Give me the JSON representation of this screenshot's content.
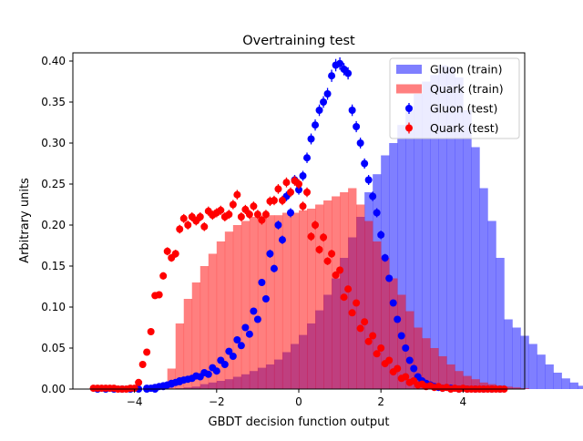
{
  "chart_data": {
    "type": "histogram",
    "title": "Overtraining test",
    "xlabel": "GBDT decision function output",
    "ylabel": "Arbitrary units",
    "xlim": [
      -5.5,
      5.5
    ],
    "ylim": [
      0,
      0.41
    ],
    "xticks": [
      -4,
      -2,
      0,
      2,
      4
    ],
    "xtick_labels": [
      "−4",
      "−2",
      "0",
      "2",
      "4"
    ],
    "yticks": [
      0,
      0.05,
      0.1,
      0.15,
      0.2,
      0.25,
      0.3,
      0.35,
      0.4
    ],
    "ytick_labels": [
      "0.00",
      "0.05",
      "0.10",
      "0.15",
      "0.20",
      "0.25",
      "0.30",
      "0.35",
      "0.40"
    ],
    "grid": false,
    "legend_position": "top-right",
    "bin_edges_start": -5.0,
    "bin_width": 0.2,
    "colors": {
      "gluon": "#0000ff",
      "quark": "#ff0000",
      "gluon_fill": "#8080ff",
      "quark_fill": "#ff8080",
      "overlap": "#c04080"
    },
    "series": [
      {
        "name": "Gluon (train)",
        "kind": "filled-histogram",
        "color": "#0000ff",
        "values": [
          0,
          0,
          0,
          0,
          0,
          0,
          0,
          0,
          0,
          0,
          0.001,
          0.002,
          0.003,
          0.006,
          0.008,
          0.01,
          0.012,
          0.015,
          0.018,
          0.022,
          0.026,
          0.03,
          0.036,
          0.045,
          0.055,
          0.066,
          0.08,
          0.096,
          0.115,
          0.135,
          0.16,
          0.185,
          0.21,
          0.24,
          0.262,
          0.285,
          0.3,
          0.322,
          0.345,
          0.36,
          0.375,
          0.383,
          0.395,
          0.393,
          0.38,
          0.34,
          0.295,
          0.245,
          0.205,
          0.16,
          0.085,
          0.075,
          0.065,
          0.055,
          0.042,
          0.03,
          0.02,
          0.013,
          0.008,
          0.004,
          0.002,
          0.001,
          0,
          0,
          0,
          0,
          0,
          0,
          0,
          0
        ]
      },
      {
        "name": "Quark (train)",
        "kind": "filled-histogram",
        "color": "#ff0000",
        "values": [
          0,
          0,
          0,
          0,
          0,
          0,
          0,
          0,
          0.005,
          0.025,
          0.08,
          0.11,
          0.13,
          0.15,
          0.165,
          0.18,
          0.192,
          0.2,
          0.205,
          0.21,
          0.21,
          0.212,
          0.212,
          0.215,
          0.215,
          0.218,
          0.22,
          0.225,
          0.23,
          0.235,
          0.24,
          0.245,
          0.225,
          0.205,
          0.18,
          0.16,
          0.135,
          0.115,
          0.095,
          0.075,
          0.062,
          0.05,
          0.04,
          0.03,
          0.022,
          0.016,
          0.012,
          0.008,
          0.006,
          0.004,
          0.003,
          0.002,
          0.001,
          0,
          0,
          0,
          0,
          0,
          0,
          0,
          0,
          0,
          0,
          0,
          0,
          0,
          0,
          0,
          0,
          0
        ]
      },
      {
        "name": "Gluon (test)",
        "kind": "points",
        "color": "#0000ff",
        "x": [
          -4.9,
          -4.7,
          -4.5,
          -4.3,
          -4.1,
          -3.9,
          -3.7,
          -3.5,
          -3.3,
          -3.1,
          -2.9,
          -2.7,
          -2.5,
          -2.3,
          -2.1,
          -1.9,
          -1.7,
          -1.5,
          -1.3,
          -1.1,
          -0.9,
          -0.7,
          -0.5,
          -0.3,
          -0.1,
          0.1,
          0.3,
          0.5,
          0.7,
          0.9,
          1.1,
          1.3,
          1.5,
          1.7,
          1.9,
          2.1,
          2.3,
          2.5,
          2.7,
          2.9,
          3.1,
          3.3,
          3.5,
          3.7,
          3.9,
          4.1,
          4.3,
          4.5,
          4.7,
          4.9,
          -3.7,
          -3.6,
          -3.5,
          -3.4,
          -3.3,
          -3.2,
          -3.1,
          -3.0,
          -2.9,
          -2.8,
          -2.6,
          -2.4,
          -2.2,
          -2.0,
          -1.8,
          -1.6,
          -1.4,
          -1.2,
          -1.0,
          -0.8,
          -0.6,
          -0.4,
          -0.2,
          0,
          0.2,
          0.4,
          0.6,
          0.8,
          1.0,
          1.2,
          1.4,
          1.6,
          1.8,
          2.0,
          2.2,
          2.4,
          2.6,
          2.8,
          3.0,
          3.2,
          3.4
        ],
        "values": [
          0,
          0,
          0,
          0,
          0,
          0,
          0,
          0,
          0.004,
          0.006,
          0.009,
          0.012,
          0.016,
          0.02,
          0.026,
          0.035,
          0.046,
          0.06,
          0.075,
          0.095,
          0.13,
          0.165,
          0.2,
          0.235,
          0.255,
          0.26,
          0.305,
          0.34,
          0.36,
          0.395,
          0.39,
          0.34,
          0.3,
          0.255,
          0.215,
          0.16,
          0.105,
          0.065,
          0.035,
          0.015,
          0.007,
          0.003,
          0.001,
          0.001,
          0,
          0,
          0,
          0,
          0,
          0,
          0.001,
          0.001,
          0.002,
          0.003,
          0.003,
          0.005,
          0.007,
          0.008,
          0.01,
          0.011,
          0.013,
          0.015,
          0.018,
          0.022,
          0.03,
          0.04,
          0.053,
          0.067,
          0.085,
          0.11,
          0.147,
          0.182,
          0.215,
          0.243,
          0.282,
          0.322,
          0.35,
          0.382,
          0.397,
          0.385,
          0.32,
          0.275,
          0.235,
          0.188,
          0.135,
          0.085,
          0.05,
          0.025,
          0.01,
          0.005,
          0.002
        ]
      },
      {
        "name": "Quark (test)",
        "kind": "points",
        "color": "#ff0000",
        "x": [
          -5.0,
          -4.8,
          -4.6,
          -4.4,
          -4.2,
          -4.0,
          -3.8,
          -3.6,
          -3.4,
          -3.2,
          -3.0,
          -2.8,
          -2.6,
          -2.4,
          -2.2,
          -2.0,
          -1.8,
          -1.6,
          -1.4,
          -1.2,
          -1.0,
          -0.8,
          -0.6,
          -0.4,
          -0.2,
          0.0,
          0.2,
          0.4,
          0.6,
          0.8,
          1.0,
          1.2,
          1.4,
          1.6,
          1.8,
          2.0,
          2.2,
          2.4,
          2.6,
          2.8,
          3.0,
          3.2,
          3.4,
          3.6,
          3.8,
          4.0,
          4.2,
          4.4,
          4.6,
          4.8,
          5.0,
          -4.9,
          -4.7,
          -4.5,
          -4.3,
          -4.1,
          -3.9,
          -3.7,
          -3.5,
          -3.3,
          -3.1,
          -2.9,
          -2.7,
          -2.5,
          -2.3,
          -2.1,
          -1.9,
          -1.7,
          -1.5,
          -1.3,
          -1.1,
          -0.9,
          -0.7,
          -0.5,
          -0.3,
          -0.1,
          0.1,
          0.3,
          0.5,
          0.7,
          0.9,
          1.1,
          1.3,
          1.5,
          1.7,
          1.9,
          2.1,
          2.3,
          2.5,
          2.7,
          2.9,
          3.1,
          3.3,
          3.5,
          3.7,
          3.9,
          4.1,
          4.3,
          4.5,
          4.7,
          4.9
        ],
        "values": [
          0.001,
          0.001,
          0.001,
          0,
          0,
          0.001,
          0.03,
          0.07,
          0.115,
          0.168,
          0.165,
          0.208,
          0.21,
          0.21,
          0.217,
          0.215,
          0.21,
          0.225,
          0.21,
          0.213,
          0.213,
          0.213,
          0.23,
          0.23,
          0.24,
          0.25,
          0.24,
          0.2,
          0.185,
          0.165,
          0.145,
          0.122,
          0.105,
          0.082,
          0.065,
          0.05,
          0.035,
          0.025,
          0.015,
          0.01,
          0.006,
          0.004,
          0.003,
          0.002,
          0.001,
          0.001,
          0,
          0,
          0,
          0,
          0,
          0.001,
          0.001,
          0.001,
          0,
          0.001,
          0.008,
          0.045,
          0.114,
          0.138,
          0.16,
          0.195,
          0.2,
          0.205,
          0.198,
          0.212,
          0.218,
          0.213,
          0.237,
          0.219,
          0.223,
          0.206,
          0.229,
          0.244,
          0.252,
          0.254,
          0.223,
          0.186,
          0.17,
          0.156,
          0.139,
          0.112,
          0.093,
          0.074,
          0.058,
          0.043,
          0.031,
          0.021,
          0.013,
          0.008,
          0.005,
          0.003,
          0.002,
          0.001,
          0,
          0,
          0,
          0,
          0,
          0,
          0
        ]
      }
    ]
  }
}
